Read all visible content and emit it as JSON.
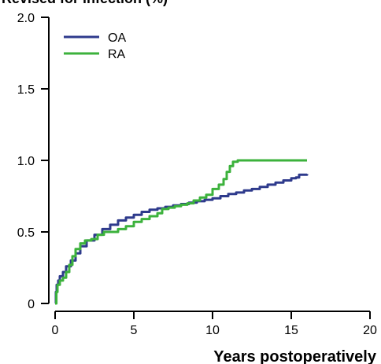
{
  "chart_data": {
    "type": "line",
    "title": "Revised for infection (%)",
    "xlabel": "Years postoperatively",
    "ylabel": "",
    "xlim": [
      0,
      20
    ],
    "ylim": [
      0,
      2.0
    ],
    "x_ticks": [
      "0",
      "5",
      "10",
      "15",
      "20"
    ],
    "y_ticks": [
      "0",
      "0.5",
      "1.0",
      "1.5",
      "2.0"
    ],
    "grid": false,
    "legend_placement": "top-left",
    "series": [
      {
        "name": "OA",
        "color": "#2e3a8c",
        "x": [
          0,
          0.05,
          0.1,
          0.2,
          0.3,
          0.5,
          0.7,
          1.0,
          1.3,
          1.6,
          2.0,
          2.5,
          3.0,
          3.5,
          4.0,
          4.5,
          5.0,
          5.5,
          6.0,
          6.5,
          7.0,
          7.5,
          8.0,
          8.5,
          9.0,
          9.5,
          10.0,
          10.5,
          11.0,
          11.5,
          12.0,
          12.5,
          13.0,
          13.5,
          14.0,
          14.5,
          15.0,
          15.3,
          15.5,
          16.0
        ],
        "y": [
          0,
          0.08,
          0.13,
          0.16,
          0.19,
          0.22,
          0.26,
          0.3,
          0.35,
          0.4,
          0.44,
          0.48,
          0.52,
          0.55,
          0.58,
          0.6,
          0.62,
          0.64,
          0.655,
          0.665,
          0.675,
          0.685,
          0.695,
          0.705,
          0.715,
          0.725,
          0.735,
          0.75,
          0.765,
          0.775,
          0.79,
          0.8,
          0.815,
          0.83,
          0.845,
          0.86,
          0.875,
          0.88,
          0.9,
          0.905
        ]
      },
      {
        "name": "RA",
        "color": "#3cb23c",
        "x": [
          0,
          0.08,
          0.15,
          0.3,
          0.5,
          0.7,
          0.9,
          1.1,
          1.3,
          1.6,
          1.9,
          2.3,
          2.7,
          3.1,
          3.5,
          4.0,
          4.5,
          5.0,
          5.5,
          6.0,
          6.5,
          6.8,
          7.2,
          7.6,
          8.0,
          8.4,
          8.8,
          9.2,
          9.6,
          10.0,
          10.4,
          10.7,
          10.9,
          11.1,
          11.3,
          11.6,
          12.0,
          13.0,
          14.0,
          15.0,
          16.0
        ],
        "y": [
          0,
          0.08,
          0.13,
          0.16,
          0.18,
          0.22,
          0.27,
          0.33,
          0.38,
          0.42,
          0.44,
          0.45,
          0.48,
          0.5,
          0.5,
          0.52,
          0.54,
          0.57,
          0.59,
          0.61,
          0.63,
          0.66,
          0.67,
          0.68,
          0.69,
          0.7,
          0.72,
          0.74,
          0.76,
          0.8,
          0.83,
          0.87,
          0.92,
          0.96,
          0.99,
          1.0,
          1.0,
          1.0,
          1.0,
          1.0,
          1.0
        ]
      }
    ]
  }
}
